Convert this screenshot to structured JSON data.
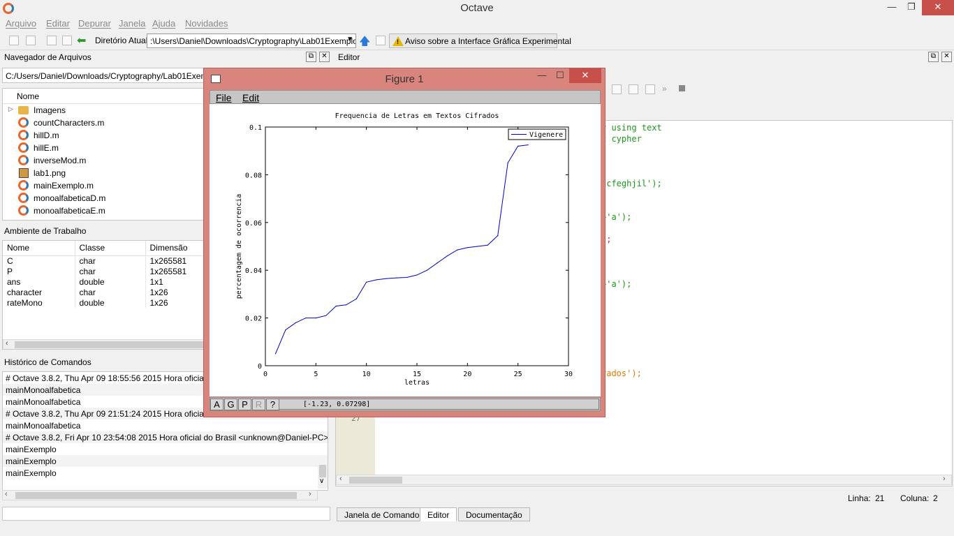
{
  "window": {
    "title": "Octave"
  },
  "menubar": [
    "Arquivo",
    "Editar",
    "Depurar",
    "Janela",
    "Ajuda",
    "Novidades"
  ],
  "toolbar": {
    "dir_label": "Diretório Atual:",
    "dir_value": ":\\Users\\Daniel\\Downloads\\Cryptography\\Lab01Exemplos",
    "warning_button": "Aviso sobre a Interface Gráfica Experimental"
  },
  "file_browser": {
    "title": "Navegador de Arquivos",
    "path": "C:/Users/Daniel/Downloads/Cryptography/Lab01Exemplos",
    "column": "Nome",
    "files": [
      "Imagens",
      "countCharacters.m",
      "hillD.m",
      "hillE.m",
      "inverseMod.m",
      "lab1.png",
      "mainExemplo.m",
      "monoalfabeticaD.m",
      "monoalfabeticaE.m"
    ]
  },
  "workspace": {
    "title": "Ambiente de Trabalho",
    "columns": [
      "Nome",
      "Classe",
      "Dimensão"
    ],
    "rows": [
      [
        "C",
        "char",
        "1x265581"
      ],
      [
        "P",
        "char",
        "1x265581"
      ],
      [
        "ans",
        "double",
        "1x1"
      ],
      [
        "character",
        "char",
        "1x26"
      ],
      [
        "rateMono",
        "double",
        "1x26"
      ]
    ]
  },
  "history": {
    "title": "Histórico de Comandos",
    "lines": [
      "# Octave 3.8.2, Thu Apr 09 18:55:56 2015 Hora oficial d",
      "mainMonoalfabetica",
      "mainMonoalfabetica",
      "# Octave 3.8.2, Thu Apr 09 21:51:24 2015 Hora oficial d",
      "mainMonoalfabetica",
      "# Octave 3.8.2, Fri Apr 10 23:54:08 2015 Hora oficial do Brasil <unknown@Daniel-PC>",
      "mainExemplo",
      "mainExemplo",
      "mainExemplo"
    ]
  },
  "editor": {
    "title": "Editor",
    "visible_line_number": "27",
    "code_fragments": [
      {
        "text": "y using text",
        "color": "#1a9a1a"
      },
      {
        "text": "c cypher",
        "color": "#1a9a1a"
      },
      {
        "text": "dcfeghjil');",
        "color": "#1a9a1a"
      },
      {
        "text": "+'a');",
        "color": "#1a9a1a"
      },
      {
        "text": ");",
        "color": "#cc2222"
      },
      {
        "text": "+'a');",
        "color": "#1a9a1a"
      },
      {
        "text": ";",
        "color": "#cc2222"
      },
      {
        "text": "rados');",
        "color": "#e07b00"
      }
    ],
    "status": {
      "line_label": "Linha:",
      "line_value": "21",
      "col_label": "Coluna:",
      "col_value": "2"
    }
  },
  "bottom_tabs": [
    "Janela de Comandos",
    "Editor",
    "Documentação"
  ],
  "figure": {
    "title": "Figure 1",
    "menu": [
      "File",
      "Edit"
    ],
    "buttons": [
      "A",
      "G",
      "P",
      "R",
      "?"
    ],
    "coords": "[-1.23, 0.07298]"
  },
  "chart_data": {
    "type": "line",
    "title": "Frequencia de Letras em Textos Cifrados",
    "xlabel": "letras",
    "ylabel": "percentagem de ocorrencia",
    "xlim": [
      0,
      30
    ],
    "ylim": [
      0,
      0.1
    ],
    "xticks": [
      0,
      5,
      10,
      15,
      20,
      25,
      30
    ],
    "yticks": [
      0,
      0.02,
      0.04,
      0.06,
      0.08,
      0.1
    ],
    "legend_position": "top-right",
    "series": [
      {
        "name": "Vigenere",
        "color": "#0000cc",
        "x": [
          1,
          2,
          3,
          4,
          5,
          6,
          7,
          8,
          9,
          10,
          11,
          12,
          13,
          14,
          15,
          16,
          17,
          18,
          19,
          20,
          21,
          22,
          23,
          24,
          25,
          26
        ],
        "y": [
          0.005,
          0.015,
          0.018,
          0.02,
          0.02,
          0.021,
          0.025,
          0.0255,
          0.028,
          0.035,
          0.036,
          0.0365,
          0.0368,
          0.037,
          0.038,
          0.04,
          0.043,
          0.046,
          0.0485,
          0.0495,
          0.05,
          0.0505,
          0.0545,
          0.085,
          0.092,
          0.0925
        ]
      }
    ]
  }
}
